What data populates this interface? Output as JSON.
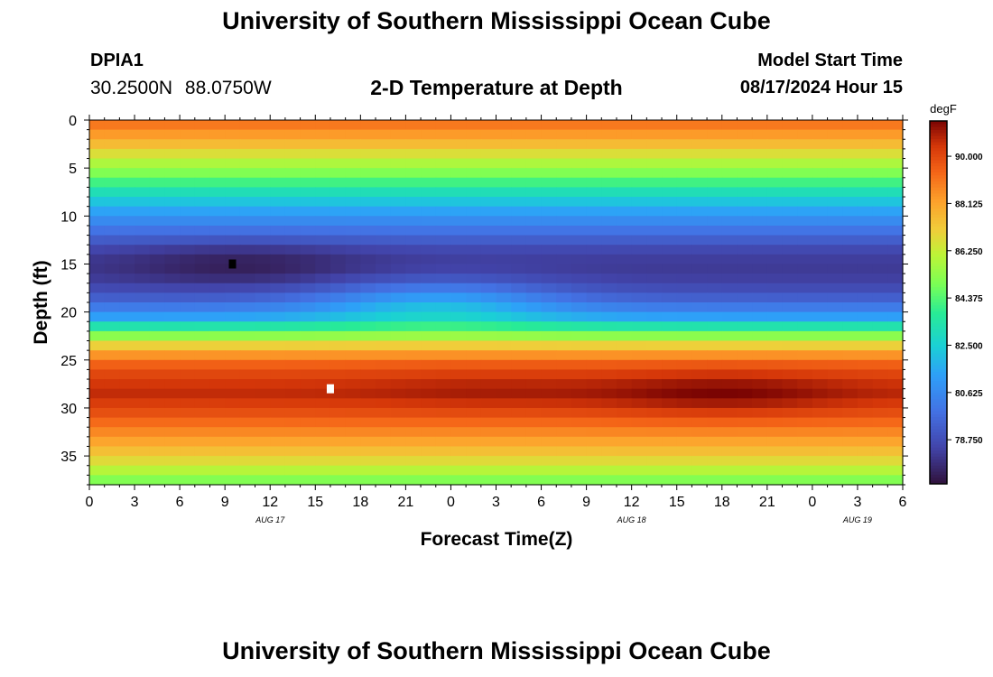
{
  "titles": {
    "top": "University of Southern Mississippi Ocean Cube",
    "bottom": "University of Southern Mississippi Ocean Cube"
  },
  "station": {
    "id": "DPIA1",
    "coords": "30.2500N 88.0750W"
  },
  "model": {
    "label": "Model Start Time",
    "time": "08/17/2024 Hour 15"
  },
  "chart_data": {
    "type": "heatmap",
    "title": "2-D Temperature at Depth",
    "xlabel": "Forecast Time(Z)",
    "ylabel": "Depth (ft)",
    "x_ticks": [
      "0",
      "3",
      "6",
      "9",
      "12",
      "15",
      "18",
      "21",
      "0",
      "3",
      "6",
      "9",
      "12",
      "15",
      "18",
      "21",
      "0",
      "3",
      "6"
    ],
    "x_hours_range": [
      0,
      54
    ],
    "date_labels": [
      {
        "text": "AUG 17",
        "hour": 12
      },
      {
        "text": "AUG 18",
        "hour": 36
      },
      {
        "text": "AUG 19",
        "hour": 51
      }
    ],
    "y_ticks": [
      0,
      5,
      10,
      15,
      20,
      25,
      30,
      35
    ],
    "ylim": [
      0,
      38
    ],
    "y_inverted": true,
    "colorbar": {
      "unit": "degF",
      "min": 77.0,
      "max": 91.4,
      "ticks": [
        "90.000",
        "88.125",
        "86.250",
        "84.375",
        "82.500",
        "80.625",
        "78.750"
      ]
    },
    "depth_profile_degF": [
      {
        "depth": 0,
        "temp": 89.3
      },
      {
        "depth": 2,
        "temp": 88.0
      },
      {
        "depth": 4,
        "temp": 86.2
      },
      {
        "depth": 6,
        "temp": 84.6
      },
      {
        "depth": 8,
        "temp": 82.6
      },
      {
        "depth": 10,
        "temp": 81.0
      },
      {
        "depth": 12,
        "temp": 79.6
      },
      {
        "depth": 13.5,
        "temp": 78.6
      },
      {
        "depth": 15,
        "temp": 78.1
      },
      {
        "depth": 17,
        "temp": 78.4
      },
      {
        "depth": 19,
        "temp": 79.6
      },
      {
        "depth": 20.5,
        "temp": 81.3
      },
      {
        "depth": 21.5,
        "temp": 83.3
      },
      {
        "depth": 22.5,
        "temp": 85.2
      },
      {
        "depth": 23.5,
        "temp": 87.0
      },
      {
        "depth": 25,
        "temp": 89.2
      },
      {
        "depth": 27,
        "temp": 90.3
      },
      {
        "depth": 28.5,
        "temp": 90.6
      },
      {
        "depth": 30,
        "temp": 90.1
      },
      {
        "depth": 32,
        "temp": 89.0
      },
      {
        "depth": 34,
        "temp": 87.8
      },
      {
        "depth": 36,
        "temp": 86.4
      },
      {
        "depth": 38,
        "temp": 84.6
      }
    ],
    "features": [
      {
        "name": "cold-core",
        "hour": 10,
        "depth": 15,
        "delta": -0.8
      },
      {
        "name": "midchannel-warming",
        "hour": 23,
        "depth": 19,
        "delta": 2.0
      },
      {
        "name": "warm-core-extension",
        "hour": 26,
        "depth": 28,
        "delta": 0.3
      },
      {
        "name": "warm-core",
        "hour": 42,
        "depth": 28.5,
        "delta": 0.8
      }
    ],
    "markers": [
      {
        "name": "min-temp-marker",
        "hour": 9.5,
        "depth": 15,
        "color": "#000000"
      },
      {
        "name": "max-temp-marker",
        "hour": 16,
        "depth": 28,
        "color": "#ffffff"
      }
    ]
  }
}
